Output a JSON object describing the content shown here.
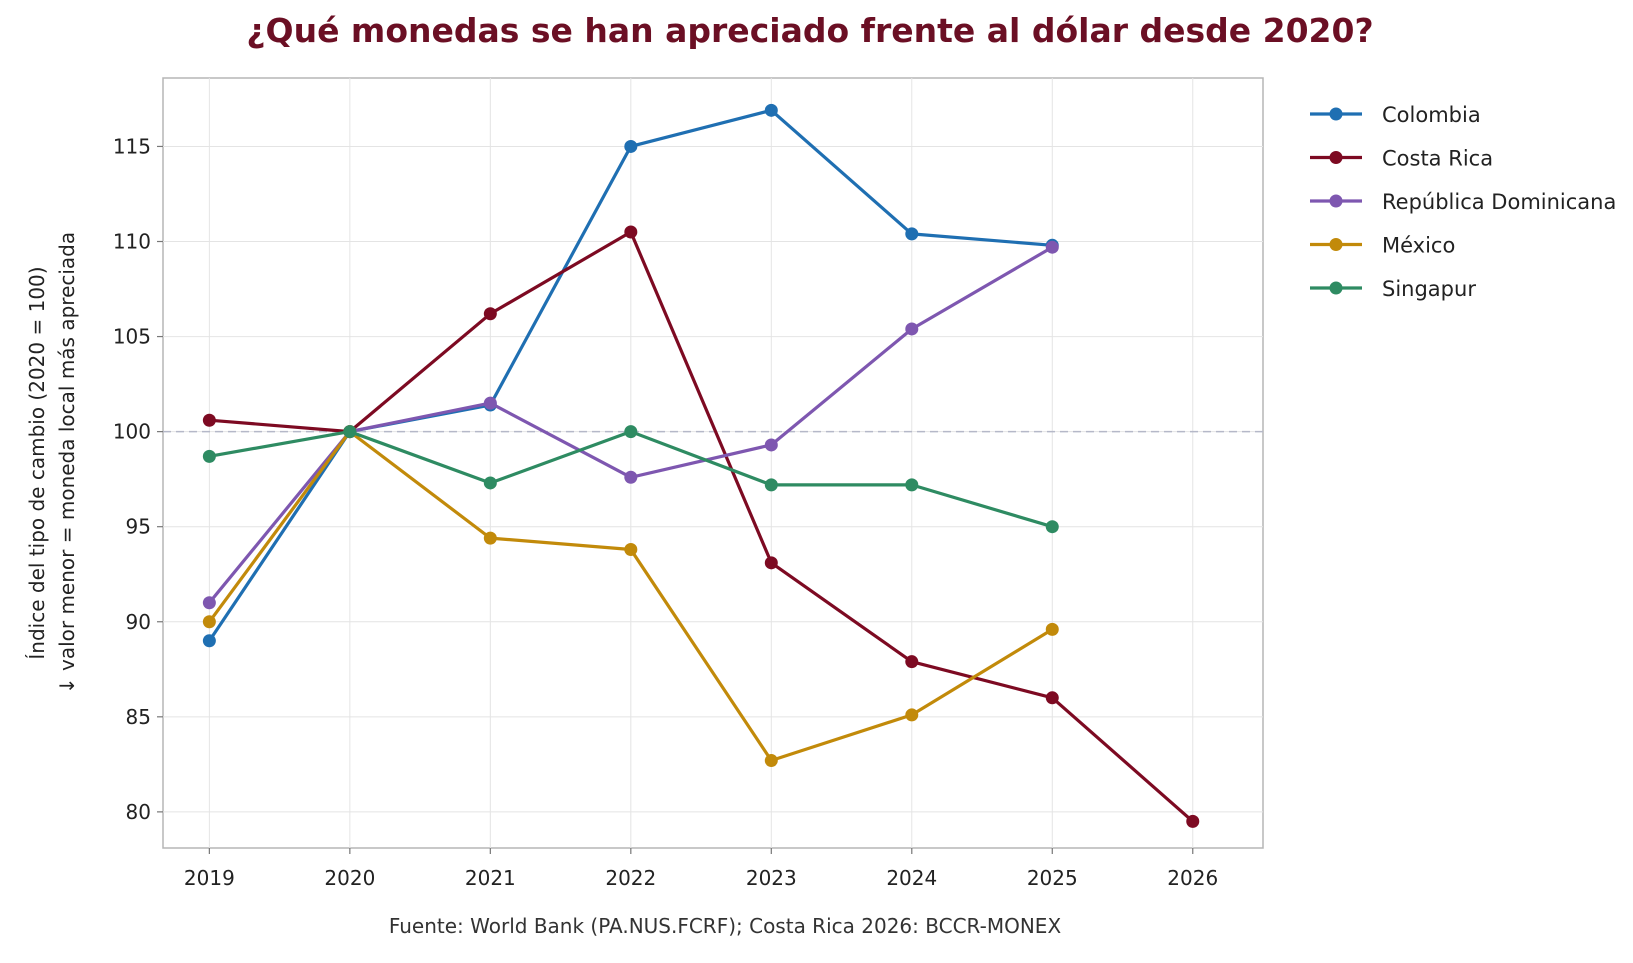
{
  "chart_data": {
    "type": "line",
    "title": "¿Qué monedas se han apreciado frente al dólar desde 2020?",
    "ylabel_lines": [
      "Índice del tipo de cambio (2020 = 100)",
      "↓ valor menor = moneda local más apreciada"
    ],
    "xlabel": "",
    "source": "Fuente: World Bank (PA.NUS.FCRF); Costa Rica 2026: BCCR-MONEX",
    "x": [
      2019,
      2020,
      2021,
      2022,
      2023,
      2024,
      2025,
      2026
    ],
    "xlim": [
      2018.67,
      2026.5
    ],
    "ylim": [
      78.1,
      118.6
    ],
    "yticks": [
      80,
      85,
      90,
      95,
      100,
      105,
      110,
      115
    ],
    "reference_line": 100,
    "grid": true,
    "legend_position": "outside-right",
    "title_color": "#6b0f24",
    "series": [
      {
        "name": "Colombia",
        "color": "#1f6fb2",
        "x": [
          2019,
          2020,
          2021,
          2022,
          2023,
          2024,
          2025
        ],
        "values": [
          89.0,
          100.0,
          101.4,
          115.0,
          116.9,
          110.4,
          109.8
        ]
      },
      {
        "name": "Costa Rica",
        "color": "#7d0a22",
        "x": [
          2019,
          2020,
          2021,
          2022,
          2023,
          2024,
          2025,
          2026
        ],
        "values": [
          100.6,
          100.0,
          106.2,
          110.5,
          93.1,
          87.9,
          86.0,
          79.5
        ]
      },
      {
        "name": "República Dominicana",
        "color": "#7e57b0",
        "x": [
          2019,
          2020,
          2021,
          2022,
          2023,
          2024,
          2025
        ],
        "values": [
          91.0,
          100.0,
          101.5,
          97.6,
          99.3,
          105.4,
          109.7
        ]
      },
      {
        "name": "México",
        "color": "#c28a0a",
        "x": [
          2019,
          2020,
          2021,
          2022,
          2023,
          2024,
          2025
        ],
        "values": [
          90.0,
          100.0,
          94.4,
          93.8,
          82.7,
          85.1,
          89.6
        ]
      },
      {
        "name": "Singapur",
        "color": "#2e8b62",
        "x": [
          2019,
          2020,
          2021,
          2022,
          2023,
          2024,
          2025
        ],
        "values": [
          98.7,
          100.0,
          97.3,
          100.0,
          97.2,
          97.2,
          95.0
        ]
      }
    ]
  }
}
